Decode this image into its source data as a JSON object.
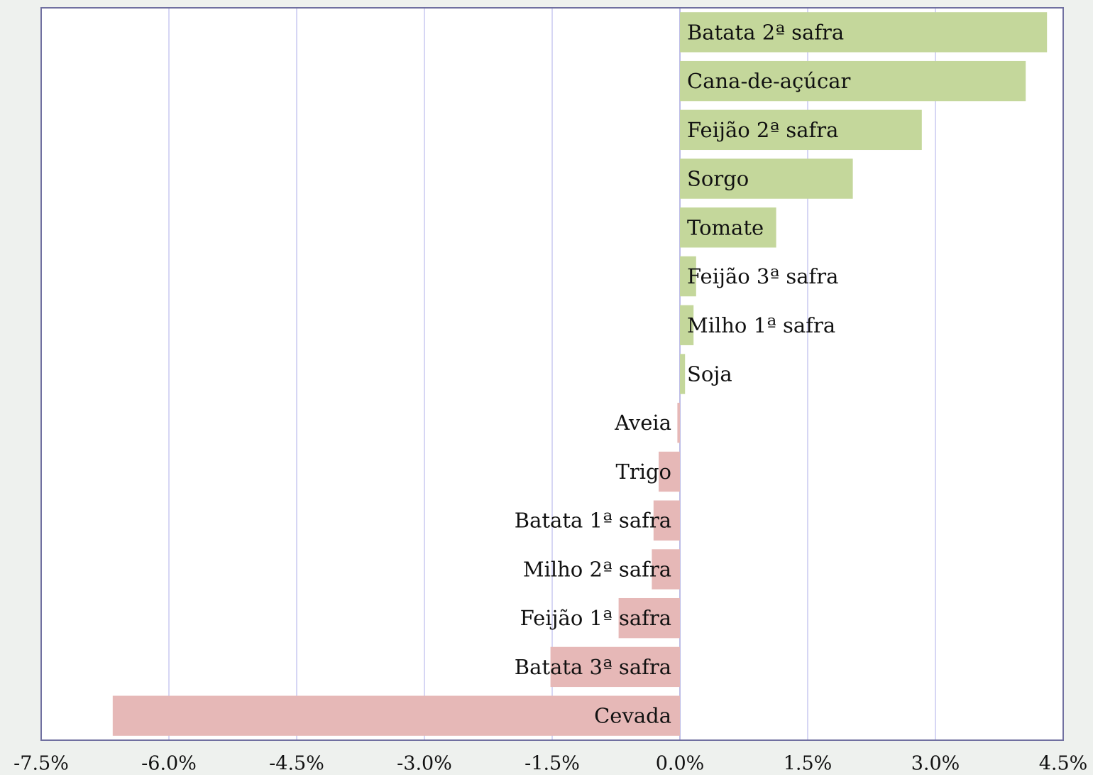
{
  "chart_data": {
    "type": "hbar",
    "categories": [
      "Batata 2ª safra",
      "Cana-de-açúcar",
      "Feijão 2ª safra",
      "Sorgo",
      "Tomate",
      "Feijão 3ª safra",
      "Milho 1ª safra",
      "Soja",
      "Aveia",
      "Trigo",
      "Batata 1ª safra",
      "Milho 2ª safra",
      "Feijão 1ª safra",
      "Batata 3ª safra",
      "Cevada"
    ],
    "values": [
      4.31,
      4.06,
      2.84,
      2.03,
      1.13,
      0.19,
      0.16,
      0.06,
      -0.03,
      -0.25,
      -0.31,
      -0.33,
      -0.72,
      -1.52,
      -6.66
    ],
    "colors": {
      "positive": "#c4d79b",
      "negative": "#e6b8b7"
    },
    "xlim": [
      -7.5,
      4.5
    ],
    "xticks": [
      {
        "value": -7.5,
        "label": "-7.5%"
      },
      {
        "value": -6.0,
        "label": "-6.0%"
      },
      {
        "value": -4.5,
        "label": "-4.5%"
      },
      {
        "value": -3.0,
        "label": "-3.0%"
      },
      {
        "value": -1.5,
        "label": "-1.5%"
      },
      {
        "value": 0.0,
        "label": "0.0%"
      },
      {
        "value": 1.5,
        "label": "1.5%"
      },
      {
        "value": 3.0,
        "label": "3.0%"
      },
      {
        "value": 4.5,
        "label": "4.5%"
      }
    ],
    "grid": true
  }
}
